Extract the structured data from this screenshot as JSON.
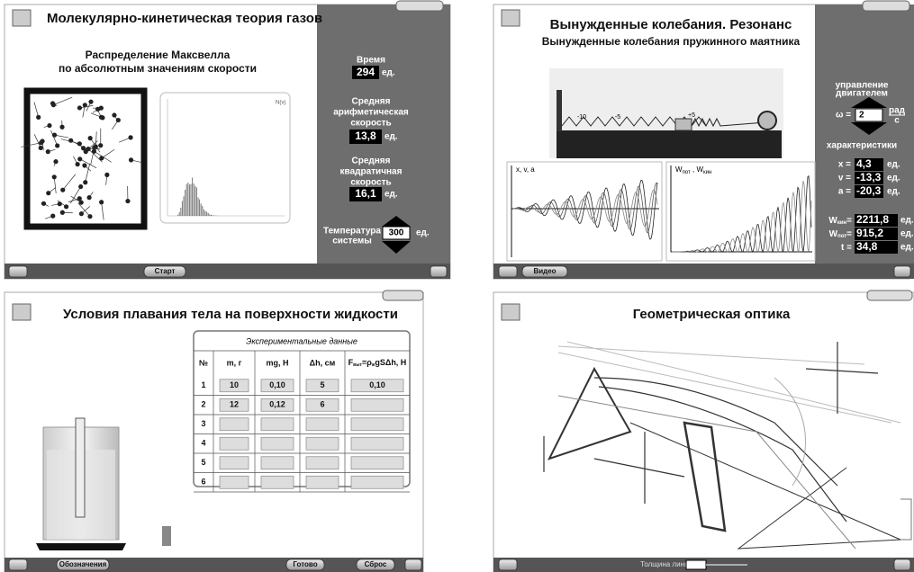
{
  "gas": {
    "title": "Молекулярно-кинетическая теория газов",
    "subtitle": [
      "Распределение Максвелла",
      "по абсолютным значениям скорости"
    ],
    "graph_label": "N(v)",
    "time": {
      "label": "Время",
      "value": "294",
      "unit": "ед."
    },
    "mean_speed": {
      "label": [
        "Средняя",
        "арифметическая",
        "скорость"
      ],
      "value": "13,8",
      "unit": "ед."
    },
    "rms_speed": {
      "label": [
        "Средняя",
        "квадратичная",
        "скорость"
      ],
      "value": "16,1",
      "unit": "ед."
    },
    "temperature": {
      "label": [
        "Температура",
        "системы"
      ],
      "value": "300",
      "unit": "ед."
    },
    "button": "Старт"
  },
  "resonance": {
    "title": "Вынужденные колебания. Резонанс",
    "subtitle": "Вынужденные колебания пружинного маятника",
    "scale": [
      "-10",
      "-5",
      "+5"
    ],
    "graph1_label": "x, v, a",
    "graph2_label": {
      "a": "W",
      "a_sub": "пот",
      "sep": " , ",
      "b": "W",
      "b_sub": "кин"
    },
    "motor": [
      "управление",
      "двигателем"
    ],
    "omega": {
      "label": "ω =",
      "value": "2",
      "unit_top": "рад",
      "unit_bottom": "с"
    },
    "characteristics": "характеристики",
    "rows": [
      {
        "label": "x =",
        "value": "4,3",
        "unit": "ед."
      },
      {
        "label": "v =",
        "value": "-13,3",
        "unit": "ед."
      },
      {
        "label": "a =",
        "value": "-20,3",
        "unit": "ед."
      }
    ],
    "energy": [
      {
        "label": "W",
        "sub": "кин",
        "eq": "=",
        "value": "2211,8",
        "unit": "ед."
      },
      {
        "label": "W",
        "sub": "пот",
        "eq": "=",
        "value": "915,2",
        "unit": "ед."
      }
    ],
    "t": {
      "label": "t =",
      "value": "34,8",
      "unit": "ед."
    },
    "button": "Видео"
  },
  "floating": {
    "title": "Условия плавания тела на поверхности жидкости",
    "table": {
      "caption": "Экспериментальные данные",
      "headers": [
        "№",
        "m, г",
        "mg, Н",
        "Δh, см",
        {
          "a": "F",
          "a_sub": "выт",
          "b": "=ρ",
          "b_sub": "ж",
          "c": "gSΔh, Н"
        }
      ],
      "rows": [
        [
          "1",
          "10",
          "0,10",
          "5",
          "0,10"
        ],
        [
          "2",
          "12",
          "0,12",
          "6"
        ],
        [
          "3"
        ],
        [
          "4"
        ],
        [
          "5"
        ],
        [
          "6"
        ]
      ]
    },
    "buttons": [
      "Обозначения",
      "Готово",
      "Сброс"
    ]
  },
  "optics": {
    "title": "Геометрическая оптика",
    "line_width_label": "Толщина линии"
  }
}
